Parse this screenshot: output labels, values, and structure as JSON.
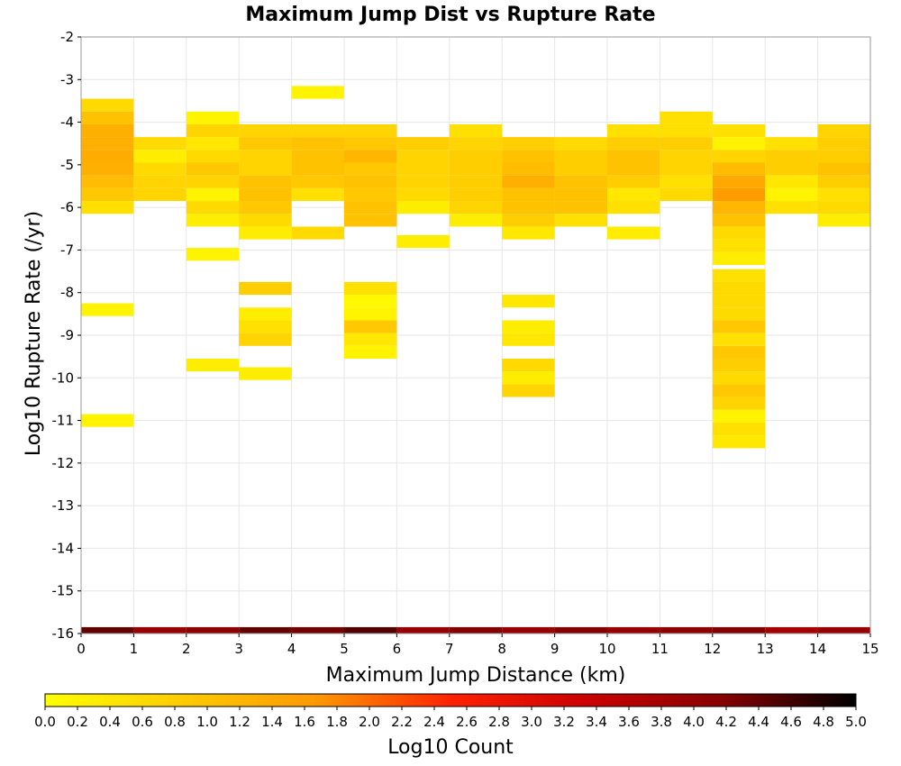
{
  "chart_data": {
    "type": "heatmap",
    "title": "Maximum Jump Dist vs Rupture Rate",
    "xlabel": "Maximum Jump Distance (km)",
    "ylabel": "Log10 Rupture Rate (/yr)",
    "xlim": [
      0,
      15
    ],
    "ylim": [
      -16,
      -2
    ],
    "x_ticks": [
      "0",
      "1",
      "2",
      "3",
      "4",
      "5",
      "6",
      "7",
      "8",
      "9",
      "10",
      "11",
      "12",
      "13",
      "14",
      "15"
    ],
    "y_ticks": [
      "-2",
      "-3",
      "-4",
      "-5",
      "-6",
      "-7",
      "-8",
      "-9",
      "-10",
      "-11",
      "-12",
      "-13",
      "-14",
      "-15",
      "-16"
    ],
    "grid": true,
    "x_bin_width": 1,
    "y_bin_height": 0.3,
    "colorbar": {
      "label": "Log10 Count",
      "min": 0.0,
      "max": 5.0,
      "ticks": [
        "0.0",
        "0.2",
        "0.4",
        "0.6",
        "0.8",
        "1.0",
        "1.2",
        "1.4",
        "1.6",
        "1.8",
        "2.0",
        "2.2",
        "2.4",
        "2.6",
        "2.8",
        "3.0",
        "3.2",
        "3.4",
        "3.6",
        "3.8",
        "4.0",
        "4.2",
        "4.4",
        "4.6",
        "4.8",
        "5.0"
      ],
      "colors": [
        "#ffff00",
        "#ffcc00",
        "#ff9900",
        "#ff2200",
        "#cc0000",
        "#880000",
        "#000000"
      ]
    },
    "cells": [
      {
        "x": 0,
        "y": -3.6,
        "v": 0.6
      },
      {
        "x": 0,
        "y": -3.9,
        "v": 1.0
      },
      {
        "x": 0,
        "y": -4.2,
        "v": 1.3
      },
      {
        "x": 0,
        "y": -4.5,
        "v": 1.3
      },
      {
        "x": 0,
        "y": -4.8,
        "v": 1.35
      },
      {
        "x": 0,
        "y": -5.1,
        "v": 1.3
      },
      {
        "x": 0,
        "y": -5.4,
        "v": 1.1
      },
      {
        "x": 0,
        "y": -5.7,
        "v": 0.9
      },
      {
        "x": 0,
        "y": -6.0,
        "v": 0.5
      },
      {
        "x": 0,
        "y": -8.4,
        "v": 0.2
      },
      {
        "x": 0,
        "y": -11.0,
        "v": 0.2
      },
      {
        "x": 1,
        "y": -4.5,
        "v": 0.6
      },
      {
        "x": 1,
        "y": -4.8,
        "v": 0.3
      },
      {
        "x": 1,
        "y": -5.1,
        "v": 0.6
      },
      {
        "x": 1,
        "y": -5.4,
        "v": 0.7
      },
      {
        "x": 1,
        "y": -5.7,
        "v": 0.7
      },
      {
        "x": 2,
        "y": -3.9,
        "v": 0.2
      },
      {
        "x": 2,
        "y": -4.2,
        "v": 0.7
      },
      {
        "x": 2,
        "y": -4.5,
        "v": 0.4
      },
      {
        "x": 2,
        "y": -4.8,
        "v": 0.6
      },
      {
        "x": 2,
        "y": -5.1,
        "v": 0.9
      },
      {
        "x": 2,
        "y": -5.4,
        "v": 0.7
      },
      {
        "x": 2,
        "y": -5.7,
        "v": 0.2
      },
      {
        "x": 2,
        "y": -6.0,
        "v": 0.6
      },
      {
        "x": 2,
        "y": -6.3,
        "v": 0.3
      },
      {
        "x": 2,
        "y": -7.1,
        "v": 0.2
      },
      {
        "x": 2,
        "y": -9.7,
        "v": 0.3
      },
      {
        "x": 3,
        "y": -4.2,
        "v": 0.7
      },
      {
        "x": 3,
        "y": -4.5,
        "v": 0.9
      },
      {
        "x": 3,
        "y": -4.8,
        "v": 0.7
      },
      {
        "x": 3,
        "y": -5.1,
        "v": 0.7
      },
      {
        "x": 3,
        "y": -5.4,
        "v": 1.0
      },
      {
        "x": 3,
        "y": -5.7,
        "v": 1.0
      },
      {
        "x": 3,
        "y": -6.0,
        "v": 0.9
      },
      {
        "x": 3,
        "y": -6.3,
        "v": 0.6
      },
      {
        "x": 3,
        "y": -6.6,
        "v": 0.3
      },
      {
        "x": 3,
        "y": -7.9,
        "v": 0.8
      },
      {
        "x": 3,
        "y": -8.5,
        "v": 0.3
      },
      {
        "x": 3,
        "y": -8.8,
        "v": 0.5
      },
      {
        "x": 3,
        "y": -9.1,
        "v": 0.7
      },
      {
        "x": 3,
        "y": -9.9,
        "v": 0.3
      },
      {
        "x": 4,
        "y": -3.3,
        "v": 0.2
      },
      {
        "x": 4,
        "y": -4.2,
        "v": 0.7
      },
      {
        "x": 4,
        "y": -4.5,
        "v": 1.0
      },
      {
        "x": 4,
        "y": -4.8,
        "v": 1.0
      },
      {
        "x": 4,
        "y": -5.1,
        "v": 1.0
      },
      {
        "x": 4,
        "y": -5.4,
        "v": 0.9
      },
      {
        "x": 4,
        "y": -5.7,
        "v": 0.5
      },
      {
        "x": 4,
        "y": -6.6,
        "v": 0.6
      },
      {
        "x": 5,
        "y": -4.2,
        "v": 0.7
      },
      {
        "x": 5,
        "y": -4.5,
        "v": 0.9
      },
      {
        "x": 5,
        "y": -4.8,
        "v": 1.2
      },
      {
        "x": 5,
        "y": -5.1,
        "v": 0.9
      },
      {
        "x": 5,
        "y": -5.4,
        "v": 1.0
      },
      {
        "x": 5,
        "y": -5.7,
        "v": 0.9
      },
      {
        "x": 5,
        "y": -6.0,
        "v": 1.0
      },
      {
        "x": 5,
        "y": -6.3,
        "v": 1.0
      },
      {
        "x": 5,
        "y": -7.9,
        "v": 0.5
      },
      {
        "x": 5,
        "y": -8.2,
        "v": 0.1
      },
      {
        "x": 5,
        "y": -8.5,
        "v": 0.2
      },
      {
        "x": 5,
        "y": -8.8,
        "v": 0.9
      },
      {
        "x": 5,
        "y": -9.1,
        "v": 0.4
      },
      {
        "x": 5,
        "y": -9.4,
        "v": 0.2
      },
      {
        "x": 6,
        "y": -4.5,
        "v": 0.8
      },
      {
        "x": 6,
        "y": -4.8,
        "v": 0.7
      },
      {
        "x": 6,
        "y": -5.1,
        "v": 0.7
      },
      {
        "x": 6,
        "y": -5.4,
        "v": 0.7
      },
      {
        "x": 6,
        "y": -5.7,
        "v": 0.6
      },
      {
        "x": 6,
        "y": -6.0,
        "v": 0.3
      },
      {
        "x": 6,
        "y": -6.8,
        "v": 0.3
      },
      {
        "x": 7,
        "y": -4.2,
        "v": 0.5
      },
      {
        "x": 7,
        "y": -4.5,
        "v": 0.7
      },
      {
        "x": 7,
        "y": -4.8,
        "v": 0.8
      },
      {
        "x": 7,
        "y": -5.1,
        "v": 0.8
      },
      {
        "x": 7,
        "y": -5.4,
        "v": 0.8
      },
      {
        "x": 7,
        "y": -5.7,
        "v": 0.8
      },
      {
        "x": 7,
        "y": -6.0,
        "v": 0.7
      },
      {
        "x": 7,
        "y": -6.3,
        "v": 0.3
      },
      {
        "x": 8,
        "y": -4.5,
        "v": 0.8
      },
      {
        "x": 8,
        "y": -4.8,
        "v": 1.0
      },
      {
        "x": 8,
        "y": -5.1,
        "v": 1.1
      },
      {
        "x": 8,
        "y": -5.4,
        "v": 1.3
      },
      {
        "x": 8,
        "y": -5.7,
        "v": 1.0
      },
      {
        "x": 8,
        "y": -6.0,
        "v": 1.0
      },
      {
        "x": 8,
        "y": -6.3,
        "v": 0.8
      },
      {
        "x": 8,
        "y": -6.6,
        "v": 0.4
      },
      {
        "x": 8,
        "y": -8.2,
        "v": 0.4
      },
      {
        "x": 8,
        "y": -8.8,
        "v": 0.3
      },
      {
        "x": 8,
        "y": -9.1,
        "v": 0.4
      },
      {
        "x": 8,
        "y": -9.7,
        "v": 0.6
      },
      {
        "x": 8,
        "y": -10.0,
        "v": 0.3
      },
      {
        "x": 8,
        "y": -10.3,
        "v": 0.7
      },
      {
        "x": 9,
        "y": -4.5,
        "v": 0.6
      },
      {
        "x": 9,
        "y": -4.8,
        "v": 0.8
      },
      {
        "x": 9,
        "y": -5.1,
        "v": 0.8
      },
      {
        "x": 9,
        "y": -5.4,
        "v": 1.0
      },
      {
        "x": 9,
        "y": -5.7,
        "v": 1.0
      },
      {
        "x": 9,
        "y": -6.0,
        "v": 1.0
      },
      {
        "x": 9,
        "y": -6.3,
        "v": 0.5
      },
      {
        "x": 10,
        "y": -4.2,
        "v": 0.5
      },
      {
        "x": 10,
        "y": -4.5,
        "v": 0.8
      },
      {
        "x": 10,
        "y": -4.8,
        "v": 1.0
      },
      {
        "x": 10,
        "y": -5.1,
        "v": 1.0
      },
      {
        "x": 10,
        "y": -5.4,
        "v": 0.8
      },
      {
        "x": 10,
        "y": -5.7,
        "v": 0.4
      },
      {
        "x": 10,
        "y": -6.0,
        "v": 0.5
      },
      {
        "x": 10,
        "y": -6.6,
        "v": 0.3
      },
      {
        "x": 11,
        "y": -3.9,
        "v": 0.5
      },
      {
        "x": 11,
        "y": -4.2,
        "v": 0.5
      },
      {
        "x": 11,
        "y": -4.5,
        "v": 0.8
      },
      {
        "x": 11,
        "y": -4.8,
        "v": 0.7
      },
      {
        "x": 11,
        "y": -5.1,
        "v": 0.7
      },
      {
        "x": 11,
        "y": -5.4,
        "v": 0.5
      },
      {
        "x": 11,
        "y": -5.7,
        "v": 0.6
      },
      {
        "x": 12,
        "y": -4.2,
        "v": 0.5
      },
      {
        "x": 12,
        "y": -4.5,
        "v": 0.2
      },
      {
        "x": 12,
        "y": -4.8,
        "v": 0.7
      },
      {
        "x": 12,
        "y": -5.1,
        "v": 1.1
      },
      {
        "x": 12,
        "y": -5.4,
        "v": 1.4
      },
      {
        "x": 12,
        "y": -5.7,
        "v": 1.6
      },
      {
        "x": 12,
        "y": -6.0,
        "v": 1.2
      },
      {
        "x": 12,
        "y": -6.3,
        "v": 1.0
      },
      {
        "x": 12,
        "y": -6.6,
        "v": 0.6
      },
      {
        "x": 12,
        "y": -6.9,
        "v": 0.5
      },
      {
        "x": 12,
        "y": -7.2,
        "v": 0.3
      },
      {
        "x": 12,
        "y": -7.6,
        "v": 0.5
      },
      {
        "x": 12,
        "y": -7.9,
        "v": 0.6
      },
      {
        "x": 12,
        "y": -8.2,
        "v": 0.6
      },
      {
        "x": 12,
        "y": -8.5,
        "v": 0.6
      },
      {
        "x": 12,
        "y": -8.8,
        "v": 0.9
      },
      {
        "x": 12,
        "y": -9.1,
        "v": 0.5
      },
      {
        "x": 12,
        "y": -9.4,
        "v": 0.9
      },
      {
        "x": 12,
        "y": -9.7,
        "v": 0.8
      },
      {
        "x": 12,
        "y": -10.0,
        "v": 0.6
      },
      {
        "x": 12,
        "y": -10.3,
        "v": 0.9
      },
      {
        "x": 12,
        "y": -10.6,
        "v": 0.7
      },
      {
        "x": 12,
        "y": -10.9,
        "v": 0.2
      },
      {
        "x": 12,
        "y": -11.2,
        "v": 0.5
      },
      {
        "x": 12,
        "y": -11.5,
        "v": 0.4
      },
      {
        "x": 13,
        "y": -4.5,
        "v": 0.5
      },
      {
        "x": 13,
        "y": -4.8,
        "v": 0.8
      },
      {
        "x": 13,
        "y": -5.1,
        "v": 0.8
      },
      {
        "x": 13,
        "y": -5.4,
        "v": 0.4
      },
      {
        "x": 13,
        "y": -5.7,
        "v": 0.2
      },
      {
        "x": 13,
        "y": -6.0,
        "v": 0.5
      },
      {
        "x": 14,
        "y": -4.2,
        "v": 0.7
      },
      {
        "x": 14,
        "y": -4.5,
        "v": 0.8
      },
      {
        "x": 14,
        "y": -4.8,
        "v": 0.8
      },
      {
        "x": 14,
        "y": -5.1,
        "v": 1.0
      },
      {
        "x": 14,
        "y": -5.4,
        "v": 0.8
      },
      {
        "x": 14,
        "y": -5.7,
        "v": 0.5
      },
      {
        "x": 14,
        "y": -6.0,
        "v": 0.6
      },
      {
        "x": 14,
        "y": -6.3,
        "v": 0.3
      },
      {
        "x": 0,
        "y": -16.0,
        "v": 4.4
      },
      {
        "x": 1,
        "y": -16.0,
        "v": 4.0
      },
      {
        "x": 2,
        "y": -16.0,
        "v": 4.1
      },
      {
        "x": 3,
        "y": -16.0,
        "v": 4.4
      },
      {
        "x": 4,
        "y": -16.0,
        "v": 4.3
      },
      {
        "x": 5,
        "y": -16.0,
        "v": 4.5
      },
      {
        "x": 6,
        "y": -16.0,
        "v": 4.0
      },
      {
        "x": 7,
        "y": -16.0,
        "v": 4.2
      },
      {
        "x": 8,
        "y": -16.0,
        "v": 4.0
      },
      {
        "x": 9,
        "y": -16.0,
        "v": 4.2
      },
      {
        "x": 10,
        "y": -16.0,
        "v": 4.0
      },
      {
        "x": 11,
        "y": -16.0,
        "v": 4.1
      },
      {
        "x": 12,
        "y": -16.0,
        "v": 4.2
      },
      {
        "x": 13,
        "y": -16.0,
        "v": 3.8
      },
      {
        "x": 14,
        "y": -16.0,
        "v": 4.0
      }
    ]
  }
}
